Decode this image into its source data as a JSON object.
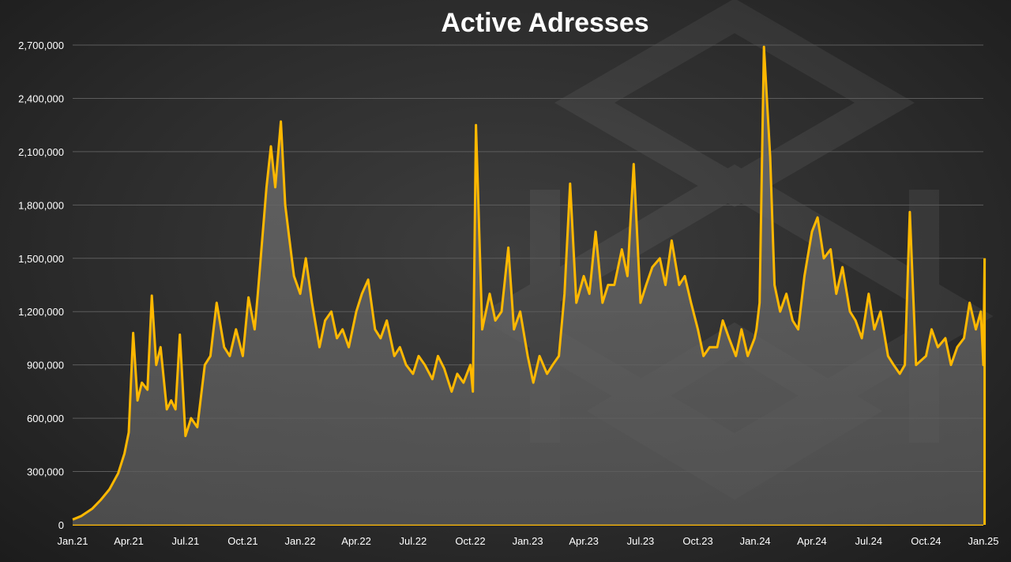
{
  "chart_data": {
    "type": "area",
    "title": "Active Adresses",
    "xlabel": "",
    "ylabel": "",
    "ylim": [
      0,
      2700000
    ],
    "yticks": [
      "0",
      "300,000",
      "600,000",
      "900,000",
      "1,200,000",
      "1,500,000",
      "1,800,000",
      "2,100,000",
      "2,400,000",
      "2,700,000"
    ],
    "xticks": [
      "Jan.21",
      "Apr.21",
      "Jul.21",
      "Oct.21",
      "Jan.22",
      "Apr.22",
      "Jul.22",
      "Oct.22",
      "Jan.23",
      "Apr.23",
      "Jul.23",
      "Oct.23",
      "Jan.24",
      "Apr.24",
      "Jul.24",
      "Oct.24",
      "Jan.25"
    ],
    "grid": true,
    "legend": "none",
    "colors": {
      "line": "#FFB800",
      "area": "#5a5a5a",
      "grid": "#5c5c5c"
    },
    "series": [
      {
        "x": [
          "2021-01-01",
          "2021-01-15",
          "2021-02-01",
          "2021-02-15",
          "2021-03-01",
          "2021-03-15",
          "2021-03-25",
          "2021-04-01",
          "2021-04-08",
          "2021-04-15",
          "2021-04-22",
          "2021-05-01",
          "2021-05-08",
          "2021-05-15",
          "2021-05-22",
          "2021-06-01",
          "2021-06-08",
          "2021-06-15",
          "2021-06-22",
          "2021-07-01",
          "2021-07-10",
          "2021-07-20",
          "2021-08-01",
          "2021-08-10",
          "2021-08-20",
          "2021-09-01",
          "2021-09-10",
          "2021-09-20",
          "2021-10-01",
          "2021-10-10",
          "2021-10-20",
          "2021-10-25",
          "2021-11-01",
          "2021-11-08",
          "2021-11-15",
          "2021-11-22",
          "2021-12-01",
          "2021-12-08",
          "2021-12-15",
          "2021-12-22",
          "2022-01-01",
          "2022-01-10",
          "2022-01-20",
          "2022-02-01",
          "2022-02-10",
          "2022-02-20",
          "2022-03-01",
          "2022-03-10",
          "2022-03-20",
          "2022-04-01",
          "2022-04-10",
          "2022-04-20",
          "2022-05-01",
          "2022-05-10",
          "2022-05-20",
          "2022-06-01",
          "2022-06-10",
          "2022-06-20",
          "2022-07-01",
          "2022-07-10",
          "2022-07-20",
          "2022-08-01",
          "2022-08-10",
          "2022-08-20",
          "2022-09-01",
          "2022-09-10",
          "2022-09-20",
          "2022-10-01",
          "2022-10-05",
          "2022-10-10",
          "2022-10-20",
          "2022-11-01",
          "2022-11-10",
          "2022-11-20",
          "2022-12-01",
          "2022-12-10",
          "2022-12-20",
          "2023-01-01",
          "2023-01-10",
          "2023-01-20",
          "2023-02-01",
          "2023-02-10",
          "2023-02-20",
          "2023-03-01",
          "2023-03-10",
          "2023-03-20",
          "2023-04-01",
          "2023-04-10",
          "2023-04-20",
          "2023-05-01",
          "2023-05-10",
          "2023-05-20",
          "2023-06-01",
          "2023-06-10",
          "2023-06-20",
          "2023-07-01",
          "2023-07-10",
          "2023-07-20",
          "2023-08-01",
          "2023-08-10",
          "2023-08-20",
          "2023-09-01",
          "2023-09-10",
          "2023-09-20",
          "2023-10-01",
          "2023-10-10",
          "2023-10-20",
          "2023-11-01",
          "2023-11-10",
          "2023-11-20",
          "2023-12-01",
          "2023-12-10",
          "2023-12-20",
          "2023-12-31",
          "2024-01-03",
          "2024-01-08",
          "2024-01-15",
          "2024-01-25",
          "2024-02-01",
          "2024-02-10",
          "2024-02-20",
          "2024-03-01",
          "2024-03-10",
          "2024-03-20",
          "2024-04-01",
          "2024-04-10",
          "2024-04-20",
          "2024-05-01",
          "2024-05-10",
          "2024-05-20",
          "2024-06-01",
          "2024-06-10",
          "2024-06-20",
          "2024-07-01",
          "2024-07-10",
          "2024-07-20",
          "2024-08-01",
          "2024-08-10",
          "2024-08-20",
          "2024-08-28",
          "2024-09-05",
          "2024-09-15",
          "2024-10-01",
          "2024-10-10",
          "2024-10-20",
          "2024-11-01",
          "2024-11-10",
          "2024-11-20",
          "2024-12-01",
          "2024-12-10",
          "2024-12-20",
          "2024-12-28",
          "2025-01-01",
          "2025-01-03"
        ],
        "values": [
          30000,
          50000,
          90000,
          140000,
          200000,
          290000,
          400000,
          520000,
          1080000,
          700000,
          800000,
          760000,
          1290000,
          900000,
          1000000,
          650000,
          700000,
          650000,
          1070000,
          500000,
          600000,
          550000,
          900000,
          950000,
          1250000,
          1000000,
          950000,
          1100000,
          950000,
          1280000,
          1100000,
          1300000,
          1600000,
          1900000,
          2130000,
          1900000,
          2270000,
          1800000,
          1600000,
          1400000,
          1300000,
          1500000,
          1250000,
          1000000,
          1150000,
          1200000,
          1050000,
          1100000,
          1000000,
          1200000,
          1300000,
          1380000,
          1100000,
          1050000,
          1150000,
          950000,
          1000000,
          900000,
          850000,
          950000,
          900000,
          820000,
          950000,
          880000,
          750000,
          850000,
          800000,
          900000,
          750000,
          2250000,
          1100000,
          1300000,
          1150000,
          1200000,
          1560000,
          1100000,
          1200000,
          950000,
          800000,
          950000,
          850000,
          900000,
          950000,
          1300000,
          1920000,
          1250000,
          1400000,
          1300000,
          1650000,
          1250000,
          1350000,
          1350000,
          1550000,
          1400000,
          2030000,
          1250000,
          1350000,
          1450000,
          1500000,
          1350000,
          1600000,
          1350000,
          1400000,
          1250000,
          1100000,
          950000,
          1000000,
          1000000,
          1150000,
          1050000,
          950000,
          1100000,
          950000,
          1050000,
          1100000,
          1250000,
          2690000,
          2070000,
          1350000,
          1200000,
          1300000,
          1150000,
          1100000,
          1400000,
          1650000,
          1730000,
          1500000,
          1550000,
          1300000,
          1450000,
          1200000,
          1150000,
          1050000,
          1300000,
          1100000,
          1200000,
          950000,
          900000,
          850000,
          900000,
          1760000,
          900000,
          950000,
          1100000,
          1000000,
          1050000,
          900000,
          1000000,
          1050000,
          1250000,
          1100000,
          1200000,
          900000,
          1500000
        ]
      }
    ]
  }
}
